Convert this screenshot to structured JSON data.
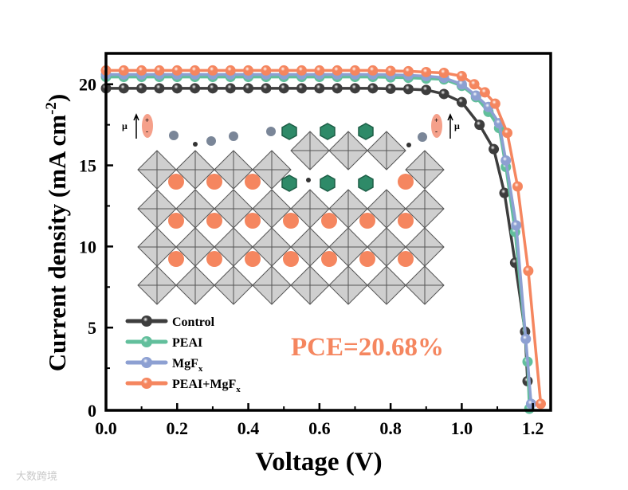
{
  "chart_data": {
    "type": "line",
    "title": "",
    "xlabel": "Voltage (V)",
    "ylabel": "Current density (mA cm",
    "ylabel_sup": "-2",
    "ylabel_end": ")",
    "xlim": [
      0,
      1.25
    ],
    "ylim": [
      0,
      22
    ],
    "xticks": [
      0.0,
      0.2,
      0.4,
      0.6,
      0.8,
      1.0,
      1.2
    ],
    "xtick_labels": [
      "0.0",
      "0.2",
      "0.4",
      "0.6",
      "0.8",
      "1.0",
      "1.2"
    ],
    "yticks": [
      0,
      5,
      10,
      15,
      20
    ],
    "ytick_labels": [
      "0",
      "5",
      "10",
      "15",
      "20"
    ],
    "grid": false,
    "legend_position": "bottom-left",
    "annotation": "PCE=20.68%",
    "series": [
      {
        "name": "Control",
        "sub": "",
        "color": "#3d3d3d",
        "x": [
          0,
          0.05,
          0.1,
          0.15,
          0.2,
          0.25,
          0.3,
          0.35,
          0.4,
          0.45,
          0.5,
          0.55,
          0.6,
          0.65,
          0.7,
          0.75,
          0.8,
          0.85,
          0.9,
          0.95,
          1.0,
          1.05,
          1.09,
          1.12,
          1.15,
          1.178,
          1.185
        ],
        "y": [
          19.75,
          19.75,
          19.75,
          19.75,
          19.75,
          19.75,
          19.75,
          19.75,
          19.75,
          19.75,
          19.75,
          19.75,
          19.75,
          19.75,
          19.75,
          19.75,
          19.72,
          19.7,
          19.65,
          19.4,
          18.9,
          17.5,
          16.0,
          13.3,
          9.0,
          4.75,
          1.7
        ]
      },
      {
        "name": "PEAI",
        "sub": "",
        "color": "#62bf9c",
        "x": [
          0,
          0.05,
          0.1,
          0.15,
          0.2,
          0.25,
          0.3,
          0.35,
          0.4,
          0.45,
          0.5,
          0.55,
          0.6,
          0.65,
          0.7,
          0.75,
          0.8,
          0.85,
          0.9,
          0.95,
          1.0,
          1.04,
          1.075,
          1.105,
          1.124,
          1.15,
          1.185,
          1.19
        ],
        "y": [
          20.45,
          20.45,
          20.45,
          20.45,
          20.45,
          20.45,
          20.45,
          20.45,
          20.45,
          20.45,
          20.45,
          20.45,
          20.45,
          20.45,
          20.45,
          20.45,
          20.42,
          20.4,
          20.35,
          20.3,
          19.9,
          19.2,
          18.3,
          17.3,
          14.9,
          10.9,
          2.9,
          0
        ]
      },
      {
        "name": "MgF",
        "sub": "x",
        "color": "#8da0d2",
        "x": [
          0,
          0.05,
          0.1,
          0.15,
          0.2,
          0.25,
          0.3,
          0.35,
          0.4,
          0.45,
          0.5,
          0.55,
          0.6,
          0.65,
          0.7,
          0.75,
          0.8,
          0.85,
          0.9,
          0.95,
          1.0,
          1.04,
          1.075,
          1.105,
          1.124,
          1.153,
          1.18,
          1.195
        ],
        "y": [
          20.6,
          20.6,
          20.6,
          20.6,
          20.6,
          20.6,
          20.6,
          20.6,
          20.6,
          20.6,
          20.6,
          20.6,
          20.6,
          20.6,
          20.6,
          20.6,
          20.58,
          20.55,
          20.5,
          20.4,
          20.0,
          19.3,
          18.6,
          17.6,
          15.3,
          11.3,
          4.3,
          0.3
        ]
      },
      {
        "name": "PEAI+MgF",
        "sub": "x",
        "color": "#f5865f",
        "x": [
          0,
          0.05,
          0.1,
          0.15,
          0.2,
          0.25,
          0.3,
          0.35,
          0.4,
          0.45,
          0.5,
          0.55,
          0.6,
          0.65,
          0.7,
          0.75,
          0.8,
          0.85,
          0.9,
          0.95,
          1.0,
          1.035,
          1.065,
          1.094,
          1.128,
          1.157,
          1.187,
          1.222
        ],
        "y": [
          20.85,
          20.85,
          20.85,
          20.85,
          20.85,
          20.85,
          20.85,
          20.85,
          20.85,
          20.85,
          20.85,
          20.85,
          20.85,
          20.85,
          20.85,
          20.85,
          20.82,
          20.8,
          20.75,
          20.7,
          20.5,
          20.0,
          19.5,
          18.8,
          17.0,
          13.7,
          8.5,
          0.3
        ]
      }
    ]
  },
  "inset": {
    "mu_left": "μ",
    "mu_right": "μ",
    "plus": "+",
    "minus": "-"
  },
  "watermark": "大数跨境"
}
